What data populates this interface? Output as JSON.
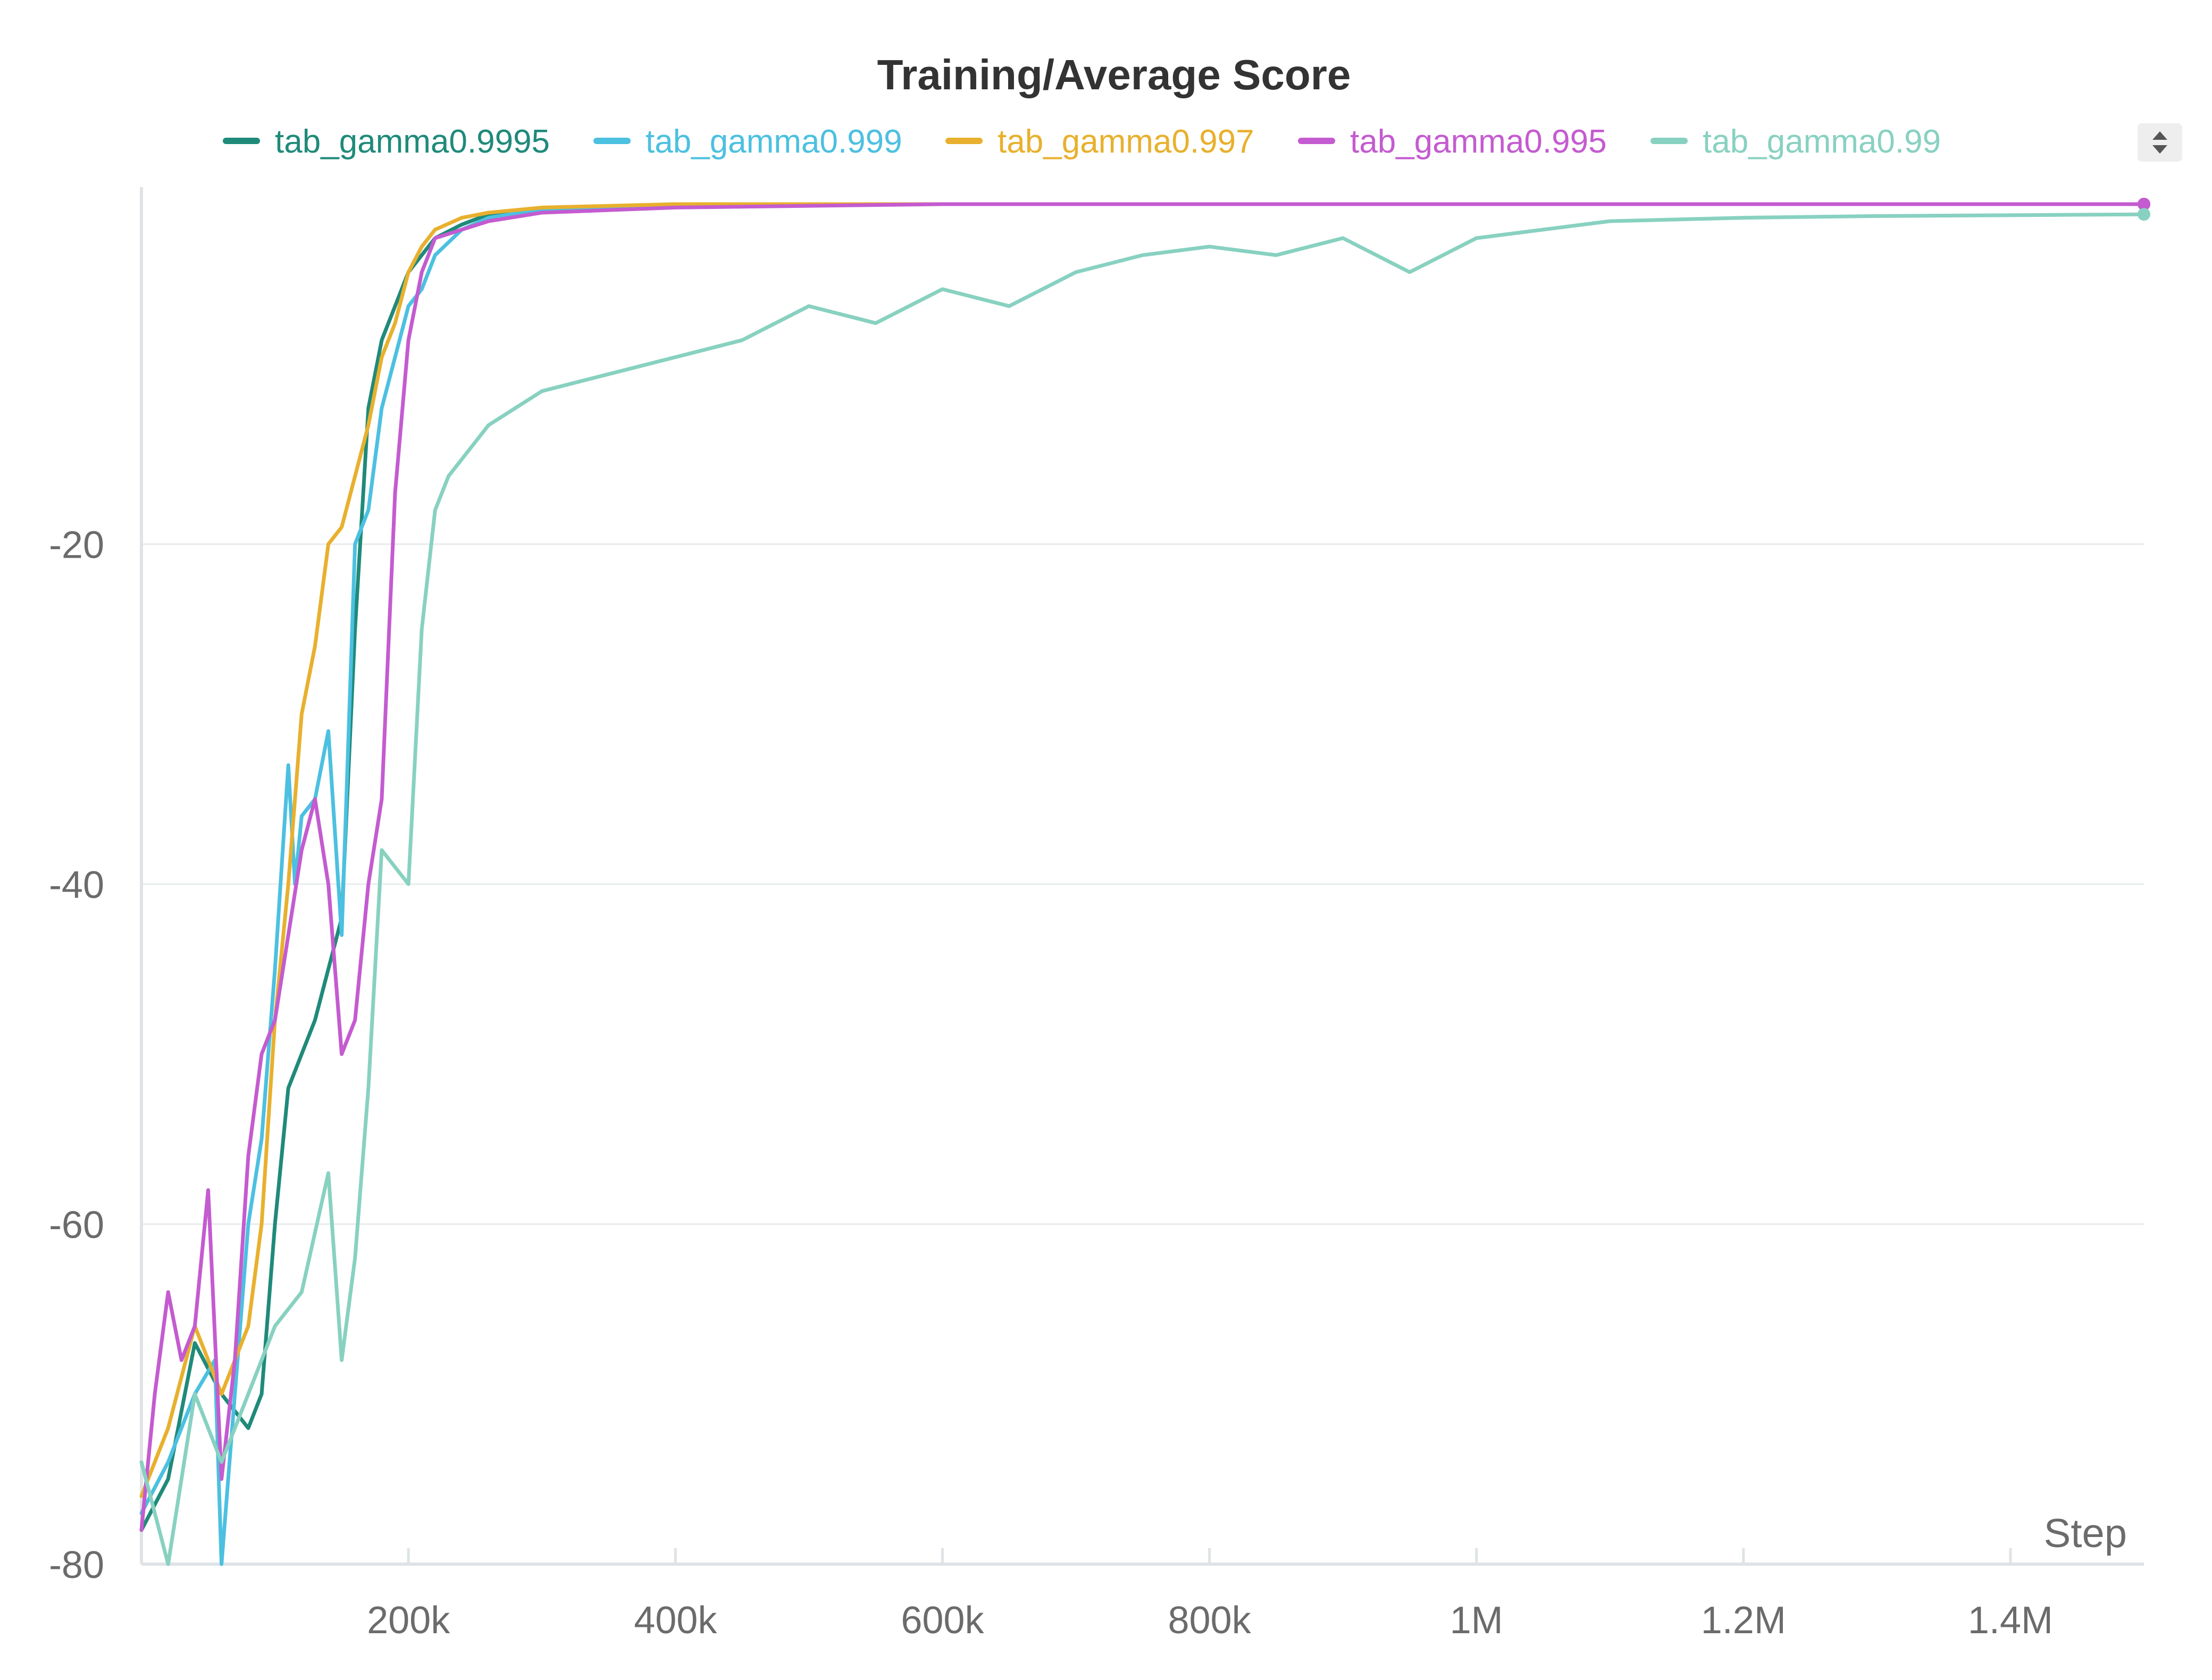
{
  "chart_data": {
    "type": "line",
    "title": "Training/Average Score",
    "xlabel": "Step",
    "ylabel": "",
    "xlim": [
      0,
      1500000
    ],
    "ylim": [
      -80,
      1
    ],
    "x_ticks": [
      {
        "value": 200000,
        "label": "200k"
      },
      {
        "value": 400000,
        "label": "400k"
      },
      {
        "value": 600000,
        "label": "600k"
      },
      {
        "value": 800000,
        "label": "800k"
      },
      {
        "value": 1000000,
        "label": "1M"
      },
      {
        "value": 1200000,
        "label": "1.2M"
      },
      {
        "value": 1400000,
        "label": "1.4M"
      }
    ],
    "y_ticks": [
      {
        "value": -80,
        "label": "-80"
      },
      {
        "value": -60,
        "label": "-60"
      },
      {
        "value": -40,
        "label": "-40"
      },
      {
        "value": -20,
        "label": "-20"
      }
    ],
    "grid": true,
    "legend_position": "top",
    "series": [
      {
        "name": "tab_gamma0.9995",
        "color": "#1f8a7a",
        "x": [
          0,
          20000,
          40000,
          60000,
          80000,
          90000,
          100000,
          110000,
          120000,
          130000,
          140000,
          150000,
          160000,
          170000,
          180000,
          190000,
          200000,
          210000,
          220000,
          240000,
          260000,
          300000,
          400000,
          600000,
          800000,
          1000000,
          1200000,
          1500000
        ],
        "values": [
          -78,
          -75,
          -67,
          -70,
          -72,
          -70,
          -60,
          -52,
          -50,
          -48,
          -45,
          -42,
          -25,
          -12,
          -8,
          -6,
          -4,
          -3,
          -2,
          -1.2,
          -0.6,
          -0.3,
          0,
          0,
          0,
          0,
          0,
          0
        ]
      },
      {
        "name": "tab_gamma0.999",
        "color": "#4cc0e0",
        "x": [
          0,
          20000,
          40000,
          55000,
          60000,
          70000,
          80000,
          90000,
          100000,
          110000,
          115000,
          120000,
          130000,
          140000,
          150000,
          160000,
          170000,
          180000,
          190000,
          200000,
          210000,
          220000,
          240000,
          260000,
          300000,
          400000,
          600000,
          800000,
          1000000,
          1200000,
          1500000
        ],
        "values": [
          -77,
          -74,
          -70,
          -68,
          -80,
          -70,
          -60,
          -55,
          -45,
          -33,
          -40,
          -36,
          -35,
          -31,
          -43,
          -20,
          -18,
          -12,
          -9,
          -6,
          -5,
          -3,
          -1.5,
          -0.8,
          -0.3,
          0,
          0,
          0,
          0,
          0,
          0
        ]
      },
      {
        "name": "tab_gamma0.997",
        "color": "#e8b02e",
        "x": [
          0,
          20000,
          40000,
          60000,
          80000,
          90000,
          100000,
          110000,
          120000,
          130000,
          140000,
          150000,
          160000,
          170000,
          180000,
          190000,
          200000,
          210000,
          220000,
          240000,
          260000,
          300000,
          400000,
          600000,
          800000,
          1000000,
          1200000,
          1500000
        ],
        "values": [
          -76,
          -72,
          -66,
          -70,
          -66,
          -60,
          -48,
          -40,
          -30,
          -26,
          -20,
          -19,
          -16,
          -13,
          -9,
          -7,
          -4,
          -2.5,
          -1.5,
          -0.8,
          -0.5,
          -0.2,
          0,
          0,
          0,
          0,
          0,
          0
        ]
      },
      {
        "name": "tab_gamma0.995",
        "color": "#c45bd0",
        "x": [
          0,
          10000,
          20000,
          30000,
          40000,
          50000,
          60000,
          70000,
          80000,
          90000,
          100000,
          110000,
          120000,
          130000,
          140000,
          150000,
          160000,
          170000,
          180000,
          190000,
          200000,
          210000,
          220000,
          240000,
          260000,
          300000,
          400000,
          600000,
          800000,
          1000000,
          1200000,
          1500000
        ],
        "values": [
          -78,
          -70,
          -64,
          -68,
          -66,
          -58,
          -75,
          -68,
          -56,
          -50,
          -48,
          -43,
          -38,
          -35,
          -40,
          -50,
          -48,
          -40,
          -35,
          -17,
          -8,
          -4,
          -2,
          -1.5,
          -1,
          -0.5,
          -0.2,
          0,
          0,
          0,
          0,
          0
        ]
      },
      {
        "name": "tab_gamma0.99",
        "color": "#88d1c1",
        "x": [
          0,
          20000,
          40000,
          60000,
          80000,
          100000,
          120000,
          140000,
          150000,
          160000,
          170000,
          180000,
          200000,
          210000,
          220000,
          230000,
          240000,
          260000,
          300000,
          350000,
          400000,
          450000,
          500000,
          550000,
          600000,
          650000,
          700000,
          750000,
          800000,
          850000,
          900000,
          950000,
          1000000,
          1050000,
          1100000,
          1200000,
          1300000,
          1500000
        ],
        "values": [
          -74,
          -80,
          -70,
          -74,
          -70,
          -66,
          -64,
          -57,
          -68,
          -62,
          -52,
          -38,
          -40,
          -25,
          -18,
          -16,
          -15,
          -13,
          -11,
          -10,
          -9,
          -8,
          -6,
          -7,
          -5,
          -6,
          -4,
          -3,
          -2.5,
          -3,
          -2,
          -4,
          -2,
          -1.5,
          -1,
          -0.8,
          -0.7,
          -0.6
        ]
      }
    ]
  },
  "controls": {
    "legend_scroll_icon": "updown-chevron-icon"
  }
}
